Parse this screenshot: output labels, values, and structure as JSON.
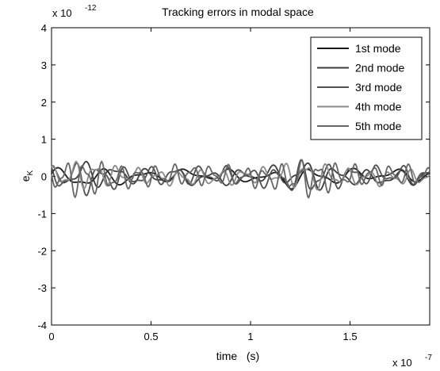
{
  "chart_data": {
    "type": "line",
    "title": "Tracking errors in modal space",
    "xlabel": "time   (s)",
    "ylabel_main": "e",
    "ylabel_sub": "K",
    "x_multiplier": {
      "base": "x 10",
      "exp": "-7"
    },
    "y_multiplier": {
      "base": "x 10",
      "exp": "-12"
    },
    "xlim": [
      0,
      1.9
    ],
    "ylim": [
      -4,
      4
    ],
    "x_ticks": [
      0,
      0.5,
      1,
      1.5
    ],
    "x_tick_labels": [
      "0",
      "0.5",
      "1",
      "1.5"
    ],
    "y_ticks": [
      -4,
      -3,
      -2,
      -1,
      0,
      1,
      2,
      3,
      4
    ],
    "y_tick_labels": [
      "-4",
      "-3",
      "-2",
      "-1",
      "0",
      "1",
      "2",
      "3",
      "4"
    ],
    "grid": false,
    "legend_position": "top-right",
    "series": [
      {
        "name": "1st mode",
        "color": "#1a1a1a",
        "amp": 0.12,
        "freq": 9,
        "phase": 0.3,
        "decay": 0.8
      },
      {
        "name": "2nd mode",
        "color": "#3c3c3c",
        "amp": 0.15,
        "freq": 12,
        "phase": 1.4,
        "decay": 1.2
      },
      {
        "name": "3rd mode",
        "color": "#505050",
        "amp": 0.18,
        "freq": 15,
        "phase": 2.1,
        "decay": 1.5
      },
      {
        "name": "4th mode",
        "color": "#8a8a8a",
        "amp": 0.15,
        "freq": 18,
        "phase": 0.9,
        "decay": 1.1
      },
      {
        "name": "5th mode",
        "color": "#666666",
        "amp": 0.2,
        "freq": 21,
        "phase": 2.7,
        "decay": 1.8
      }
    ]
  }
}
